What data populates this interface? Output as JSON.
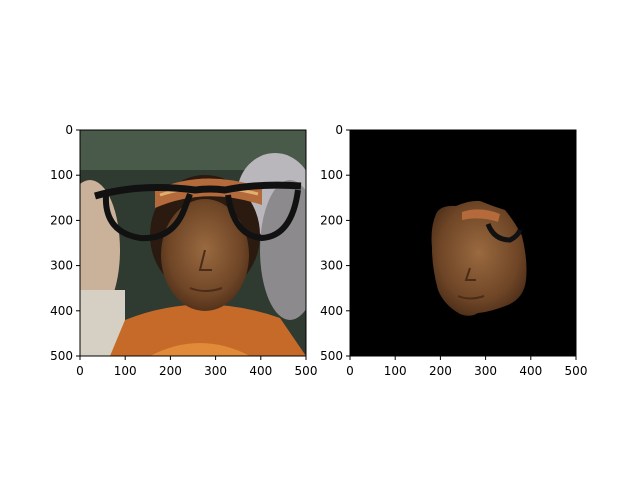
{
  "chart_data": [
    {
      "type": "image",
      "panel": "left",
      "content": "photo of a man in a patterned headband with drawn-on black glasses overlay",
      "xlim": [
        0,
        500
      ],
      "ylim": [
        500,
        0
      ],
      "x_ticks": [
        0,
        100,
        200,
        300,
        400,
        500
      ],
      "y_ticks": [
        0,
        100,
        200,
        300,
        400,
        500
      ],
      "x_tick_labels": [
        "0",
        "100",
        "200",
        "300",
        "400",
        "500"
      ],
      "y_tick_labels": [
        "0",
        "100",
        "200",
        "300",
        "400",
        "500"
      ],
      "title": "",
      "xlabel": "",
      "ylabel": ""
    },
    {
      "type": "image",
      "panel": "right",
      "content": "segmented face region on black background",
      "xlim": [
        0,
        500
      ],
      "ylim": [
        500,
        0
      ],
      "x_ticks": [
        0,
        100,
        200,
        300,
        400,
        500
      ],
      "y_ticks": [
        0,
        100,
        200,
        300,
        400,
        500
      ],
      "x_tick_labels": [
        "0",
        "100",
        "200",
        "300",
        "400",
        "500"
      ],
      "y_tick_labels": [
        "0",
        "100",
        "200",
        "300",
        "400",
        "500"
      ],
      "title": "",
      "xlabel": "",
      "ylabel": ""
    }
  ],
  "colors": {
    "axis": "#000000",
    "mask_background": "#000000",
    "skin": "#7a5230",
    "headband": "#b46a3a",
    "glasses": "#111111",
    "backdrop": "#3c4a3c"
  }
}
